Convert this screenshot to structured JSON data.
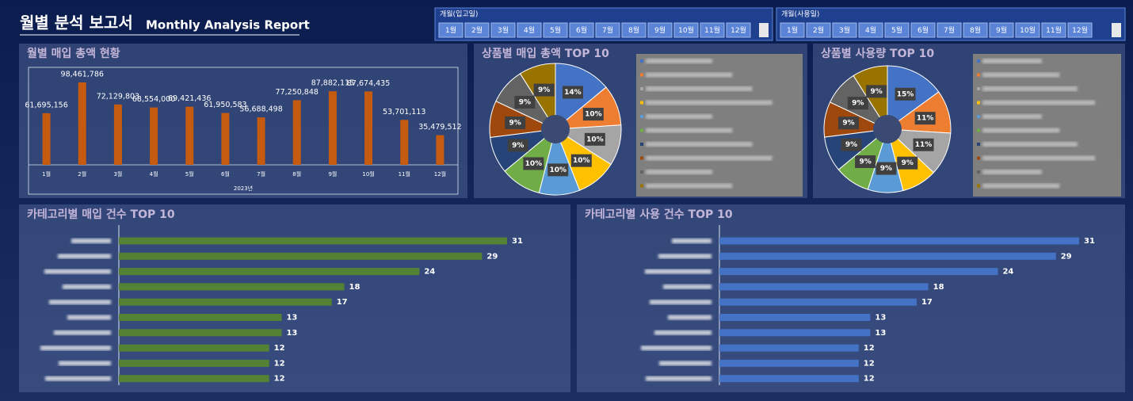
{
  "header": {
    "title": "월별 분석 보고서",
    "subtitle": "Monthly Analysis Report"
  },
  "slicers": [
    {
      "title": "개월(입고일)",
      "items": [
        "1월",
        "2월",
        "3월",
        "4월",
        "5월",
        "6월",
        "7월",
        "8월",
        "9월",
        "10월",
        "11월",
        "12월"
      ]
    },
    {
      "title": "개월(사용일)",
      "items": [
        "1월",
        "2월",
        "3월",
        "4월",
        "5월",
        "6월",
        "7월",
        "8월",
        "9월",
        "10월",
        "11월",
        "12월"
      ]
    }
  ],
  "chart_data": [
    {
      "type": "bar",
      "title": "월별 매입 총액 현황",
      "xlabel": "2023년",
      "color": "#c55a11",
      "categories": [
        "1월",
        "2월",
        "3월",
        "4월",
        "5월",
        "6월",
        "7월",
        "8월",
        "9월",
        "10월",
        "11월",
        "12월"
      ],
      "values": [
        61695156,
        98461786,
        72129803,
        68554000,
        69421436,
        61950583,
        56688498,
        77250848,
        87882115,
        87674435,
        53701113,
        35479512
      ],
      "value_labels": [
        "61,695,156",
        "98,461,786",
        "72,129,803",
        "68,554,000",
        "69,421,436",
        "61,950,583",
        "56,688,498",
        "77,250,848",
        "87,882,115",
        "87,674,435",
        "53,701,113",
        "35,479,512"
      ]
    },
    {
      "type": "pie",
      "title": "상품별 매입 총액 TOP 10",
      "categories": [
        null,
        null,
        null,
        null,
        null,
        null,
        null,
        null,
        null,
        null
      ],
      "values": [
        14,
        10,
        10,
        10,
        10,
        10,
        9,
        9,
        9,
        9
      ],
      "value_labels": [
        "14%",
        "10%",
        "10%",
        "10%",
        "10%",
        "10%",
        "9%",
        "9%",
        "9%",
        "9%"
      ],
      "colors": [
        "#4472c4",
        "#ed7d31",
        "#a5a5a5",
        "#ffc000",
        "#5b9bd5",
        "#70ad47",
        "#264478",
        "#9e480e",
        "#636363",
        "#997300"
      ]
    },
    {
      "type": "pie",
      "title": "상품별 사용량 TOP 10",
      "categories": [
        null,
        null,
        null,
        null,
        null,
        null,
        null,
        null,
        null,
        null
      ],
      "values": [
        15,
        11,
        11,
        9,
        9,
        9,
        9,
        9,
        9,
        9
      ],
      "value_labels": [
        "15%",
        "11%",
        "11%",
        "9%",
        "9%",
        "9%",
        "9%",
        "9%",
        "9%",
        "9%"
      ],
      "colors": [
        "#4472c4",
        "#ed7d31",
        "#a5a5a5",
        "#ffc000",
        "#5b9bd5",
        "#70ad47",
        "#264478",
        "#9e480e",
        "#636363",
        "#997300"
      ]
    },
    {
      "type": "hbar",
      "title": "카테고리별 매입 건수 TOP 10",
      "color": "#548235",
      "categories": [
        null,
        null,
        null,
        null,
        null,
        null,
        null,
        null,
        null,
        null
      ],
      "values": [
        31,
        29,
        24,
        18,
        17,
        13,
        13,
        12,
        12,
        12
      ]
    },
    {
      "type": "hbar",
      "title": "카테고리별 사용 건수 TOP 10",
      "color": "#4472c4",
      "categories": [
        null,
        null,
        null,
        null,
        null,
        null,
        null,
        null,
        null,
        null
      ],
      "values": [
        31,
        29,
        24,
        18,
        17,
        13,
        13,
        12,
        12,
        12
      ]
    }
  ]
}
